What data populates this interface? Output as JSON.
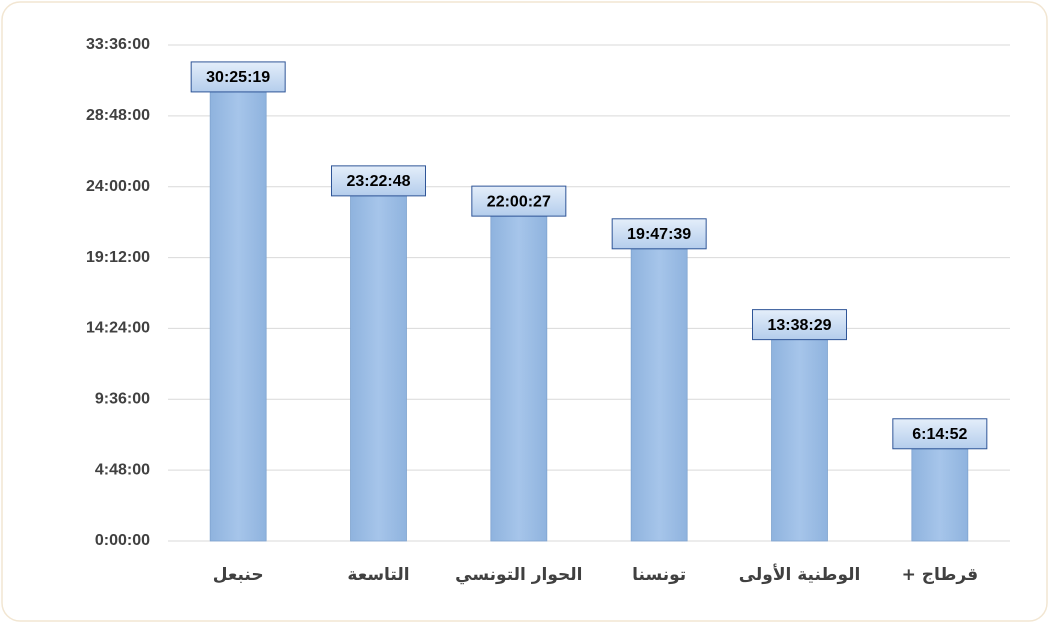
{
  "chart_data": {
    "type": "bar",
    "categories": [
      "حنبعل",
      "التاسعة",
      "الحوار التونسي",
      "تونسنا",
      "الوطنية الأولى",
      "قرطاج +"
    ],
    "values": [
      109519,
      84168,
      79227,
      71259,
      49109,
      22492
    ],
    "value_labels": [
      "30:25:19",
      "23:22:48",
      "22:00:27",
      "19:47:39",
      "13:38:29",
      "6:14:52"
    ],
    "color": "#9dc3e6",
    "ylim": [
      0,
      120960
    ],
    "yticks": [
      {
        "value": 0,
        "label": "0:00:00"
      },
      {
        "value": 17280,
        "label": "4:48:00"
      },
      {
        "value": 34560,
        "label": "9:36:00"
      },
      {
        "value": 51840,
        "label": "14:24:00"
      },
      {
        "value": 69120,
        "label": "19:12:00"
      },
      {
        "value": 86400,
        "label": "24:00:00"
      },
      {
        "value": 103680,
        "label": "28:48:00"
      },
      {
        "value": 120960,
        "label": "33:36:00"
      }
    ],
    "grid": true
  }
}
